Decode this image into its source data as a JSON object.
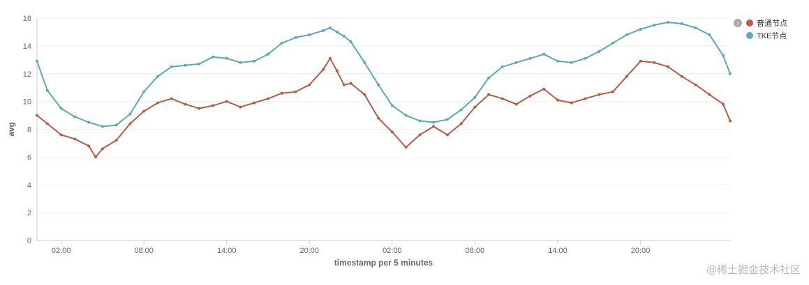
{
  "chart_data": {
    "type": "line",
    "title": "",
    "xlabel": "timestamp per 5 minutes",
    "ylabel": "avg",
    "ylim": [
      0,
      16
    ],
    "yticks": [
      0,
      2,
      4,
      6,
      8,
      10,
      12,
      14,
      16
    ],
    "x_tick_labels": [
      "02:00",
      "08:00",
      "14:00",
      "20:00",
      "02:00",
      "08:00",
      "14:00",
      "20:00"
    ],
    "x_tick_hours": [
      2,
      8,
      14,
      20,
      26,
      32,
      38,
      44
    ],
    "x_range_hours": [
      0.25,
      50.5
    ],
    "grid": "horizontal",
    "legend_position": "top-right",
    "colors": {
      "series1": "#b85a47",
      "series2": "#5ba9b8",
      "legend_toggle": "#aaaaaa"
    },
    "series": [
      {
        "name": "普通节点",
        "color": "#b85a47",
        "x": [
          0.25,
          1,
          2,
          3,
          4,
          4.5,
          5,
          6,
          7,
          8,
          9,
          10,
          11,
          12,
          13,
          14,
          15,
          16,
          17,
          18,
          19,
          20,
          21,
          21.5,
          22,
          22.5,
          23,
          24,
          25,
          26,
          27,
          28,
          29,
          30,
          31,
          32,
          33,
          34,
          35,
          36,
          37,
          38,
          39,
          40,
          41,
          42,
          43,
          44,
          45,
          46,
          47,
          48,
          49,
          50,
          50.5
        ],
        "y": [
          9.0,
          8.4,
          7.6,
          7.3,
          6.8,
          6.0,
          6.6,
          7.2,
          8.4,
          9.3,
          9.9,
          10.2,
          9.8,
          9.5,
          9.7,
          10.0,
          9.6,
          9.9,
          10.2,
          10.6,
          10.7,
          11.2,
          12.3,
          13.1,
          12.2,
          11.2,
          11.3,
          10.5,
          8.8,
          7.8,
          6.7,
          7.6,
          8.2,
          7.6,
          8.4,
          9.6,
          10.5,
          10.2,
          9.8,
          10.4,
          10.9,
          10.1,
          9.9,
          10.2,
          10.5,
          10.7,
          11.8,
          12.9,
          12.8,
          12.5,
          11.8,
          11.2,
          10.5,
          9.8,
          8.6
        ]
      },
      {
        "name": "TKE节点",
        "color": "#5ba9b8",
        "x": [
          0.25,
          1,
          2,
          3,
          4,
          5,
          6,
          7,
          8,
          9,
          10,
          11,
          12,
          13,
          14,
          15,
          16,
          17,
          18,
          19,
          20,
          21,
          21.5,
          22,
          22.5,
          23,
          24,
          25,
          26,
          27,
          28,
          29,
          30,
          31,
          32,
          33,
          34,
          35,
          36,
          37,
          38,
          39,
          40,
          41,
          42,
          43,
          44,
          45,
          46,
          47,
          48,
          49,
          50,
          50.5
        ],
        "y": [
          12.9,
          10.8,
          9.5,
          8.9,
          8.5,
          8.2,
          8.3,
          9.1,
          10.7,
          11.8,
          12.5,
          12.6,
          12.7,
          13.2,
          13.1,
          12.8,
          12.9,
          13.4,
          14.2,
          14.6,
          14.8,
          15.1,
          15.3,
          15.0,
          14.7,
          14.3,
          12.8,
          11.2,
          9.7,
          9.0,
          8.6,
          8.5,
          8.7,
          9.4,
          10.3,
          11.7,
          12.5,
          12.8,
          13.1,
          13.4,
          12.9,
          12.8,
          13.1,
          13.6,
          14.2,
          14.8,
          15.2,
          15.5,
          15.7,
          15.6,
          15.3,
          14.8,
          13.3,
          12.0
        ]
      }
    ]
  },
  "watermark": "@稀土掘金技术社区"
}
